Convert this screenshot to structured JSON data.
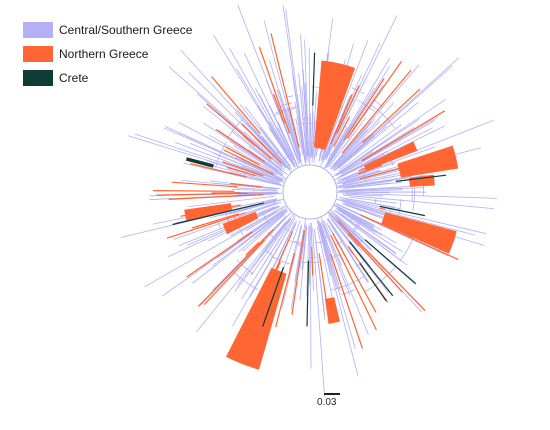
{
  "legend": {
    "items": [
      {
        "label": "Central/Southern Greece",
        "color": "#b3b0f5"
      },
      {
        "label": "Northern Greece",
        "color": "#ff6633"
      },
      {
        "label": "Crete",
        "color": "#0f3d36"
      }
    ]
  },
  "scale_bar": {
    "label": "0.03"
  },
  "colors": {
    "central_southern": "#b3b0f5",
    "northern": "#ff6633",
    "crete": "#0f3d36"
  }
}
